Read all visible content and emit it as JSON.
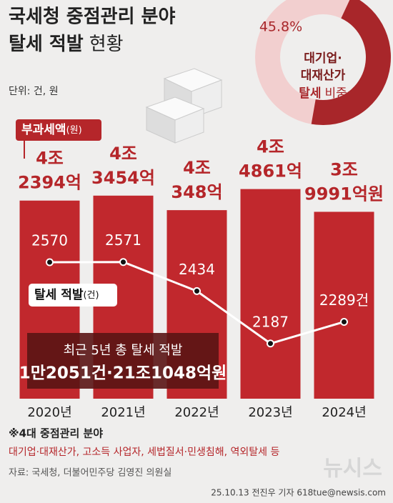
{
  "header": {
    "title_line1": "국세청 중점관리 분야",
    "title_line2_bold": "탈세 적발",
    "title_line2_light": "현황",
    "unit": "단위: 건, 원"
  },
  "donut": {
    "value": 45.8,
    "label": "45.8%",
    "center_lines": [
      "대기업·",
      "대재산가"
    ],
    "center_bold": "탈세",
    "center_light": "비중",
    "color": "#a8262a",
    "rest_color": "#f2cfcf"
  },
  "chart_data": {
    "type": "bar-line",
    "categories": [
      "2020년",
      "2021년",
      "2022년",
      "2023년",
      "2024년"
    ],
    "bar_legend": "부과세액",
    "bar_legend_unit": "(원)",
    "values": [
      42394,
      43454,
      40348,
      44861,
      39991
    ],
    "value_labels": [
      [
        "4조",
        "2394억"
      ],
      [
        "4조",
        "3454억"
      ],
      [
        "4조",
        "348억"
      ],
      [
        "4조",
        "4861억"
      ],
      [
        "3조",
        "9991억원"
      ]
    ],
    "color": "#c1282d",
    "ylim": [
      0,
      50000
    ],
    "line": {
      "name": "탈세 적발",
      "unit": "(건)",
      "values": [
        2570,
        2571,
        2434,
        2187,
        2289
      ],
      "value_labels": [
        "2570",
        "2571",
        "2434",
        "2187",
        "2289건"
      ],
      "color": "#ffffff",
      "axis": "y2"
    },
    "y2lim": [
      1900,
      2900
    ]
  },
  "summary": {
    "line1": "최근 5년 총 탈세 적발",
    "line2": "1만2051건·21조1048억원"
  },
  "footer": {
    "note_title": "※4대 중점관리 분야",
    "note_items": "대기업·대재산가, 고소득 사업자, 세법질서·민생침해, 역외탈세 등",
    "source": "자료: 국세청, 더불어민주당 김영진 의원실",
    "credit": "25.10.13 전진우 기자 618tue@newsis.com",
    "logo": "뉴시스"
  }
}
